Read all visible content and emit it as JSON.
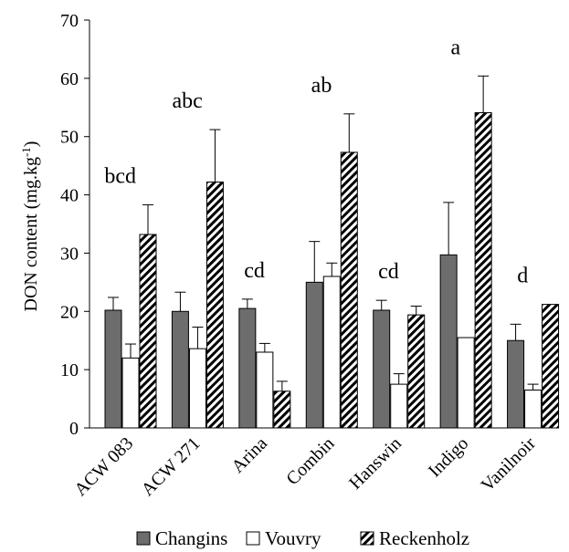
{
  "chart_data": {
    "type": "bar",
    "ylabel": "DON content (mg.kg",
    "ylabel_sup": "-1",
    "ylabel_suffix": ")",
    "ylim": [
      0,
      70
    ],
    "yticks": [
      "0",
      "10",
      "20",
      "30",
      "40",
      "50",
      "60",
      "70"
    ],
    "categories": [
      "ACW 083",
      "ACW 271",
      "Arina",
      "Combin",
      "Hanswin",
      "Indigo",
      "Vanilnoir"
    ],
    "significance": [
      "bcd",
      "abc",
      "cd",
      "ab",
      "cd",
      "a",
      "d"
    ],
    "series": [
      {
        "name": "Changins",
        "color": "#6d6d6d",
        "pattern": "solid",
        "values": [
          20.2,
          20.0,
          20.5,
          25.0,
          20.2,
          29.7,
          15.0
        ],
        "errors": [
          2.2,
          3.3,
          1.6,
          7.0,
          1.7,
          9.0,
          2.8
        ]
      },
      {
        "name": "Vouvry",
        "color": "#ffffff",
        "pattern": "none",
        "values": [
          12.0,
          13.6,
          13.0,
          26.0,
          7.5,
          15.5,
          6.5
        ],
        "errors": [
          2.4,
          3.7,
          1.5,
          2.3,
          1.8,
          0,
          1.0
        ]
      },
      {
        "name": "Reckenholz",
        "color": "#000000",
        "pattern": "hatch",
        "values": [
          33.2,
          42.2,
          6.3,
          47.3,
          19.4,
          54.1,
          21.2
        ],
        "errors": [
          5.1,
          9.0,
          1.7,
          6.6,
          1.5,
          6.3,
          0
        ]
      }
    ],
    "grid": false,
    "legend_position": "bottom"
  }
}
